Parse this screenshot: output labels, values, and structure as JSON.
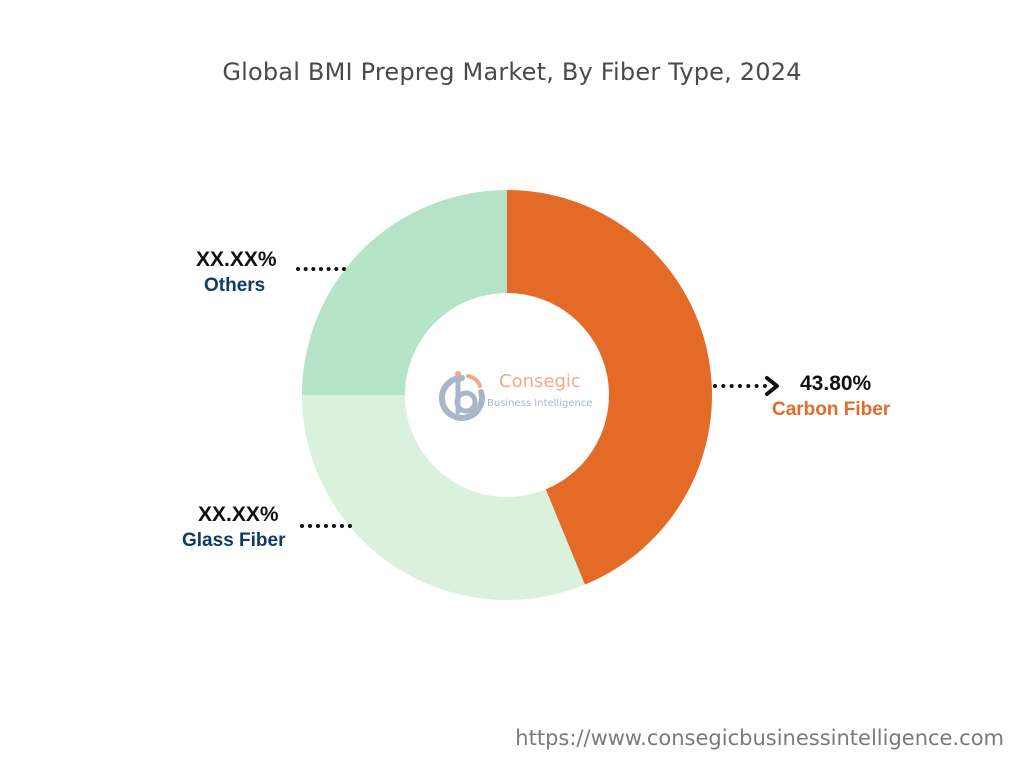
{
  "chart_data": {
    "type": "pie",
    "title": "Global BMI Prepreg Market, By Fiber Type, 2024",
    "categories": [
      "Carbon Fiber",
      "Glass Fiber",
      "Others"
    ],
    "values": [
      43.8,
      31.2,
      25.0
    ],
    "value_labels": [
      "43.80%",
      "XX.XX%",
      "XX.XX%"
    ],
    "colors": [
      "#e46a27",
      "#daf2dd",
      "#b5e3c7"
    ],
    "label_colors": [
      "#e46a27",
      "#0d3b66",
      "#0d3b66"
    ],
    "donut": true,
    "start_angle_deg": 0,
    "direction": "clockwise"
  },
  "logo": {
    "name": "Consegic",
    "subtitle": "Business Intelligence",
    "colors": [
      "#f2a98a",
      "#a9b6c8"
    ]
  },
  "footer": {
    "url": "https://www.consegicbusinessintelligence.com"
  }
}
